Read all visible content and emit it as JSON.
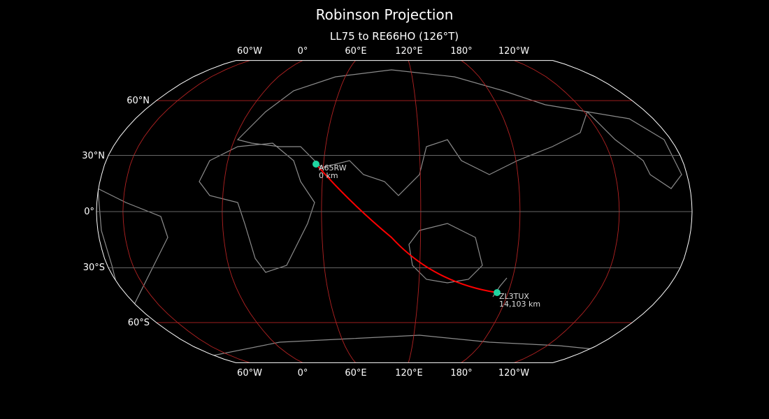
{
  "title": "Robinson Projection",
  "subtitle": "LL75 to RE66HO (126°T)",
  "lon_labels": [
    "60°W",
    "0°",
    "60°E",
    "120°E",
    "180°",
    "120°W"
  ],
  "lat_labels": [
    "60°N",
    "30°N",
    "0°",
    "30°S",
    "60°S"
  ],
  "colors": {
    "background": "#000000",
    "coastline": "#8c8c8c",
    "graticule_major": "#b22222",
    "graticule_minor": "#666666",
    "path": "#ff0000",
    "station": "#1fd4a0",
    "outline": "#ffffff"
  },
  "stations": [
    {
      "call": "A65RW",
      "distance": "0 km"
    },
    {
      "call": "ZL3TUX",
      "distance": "14,103 km"
    }
  ]
}
